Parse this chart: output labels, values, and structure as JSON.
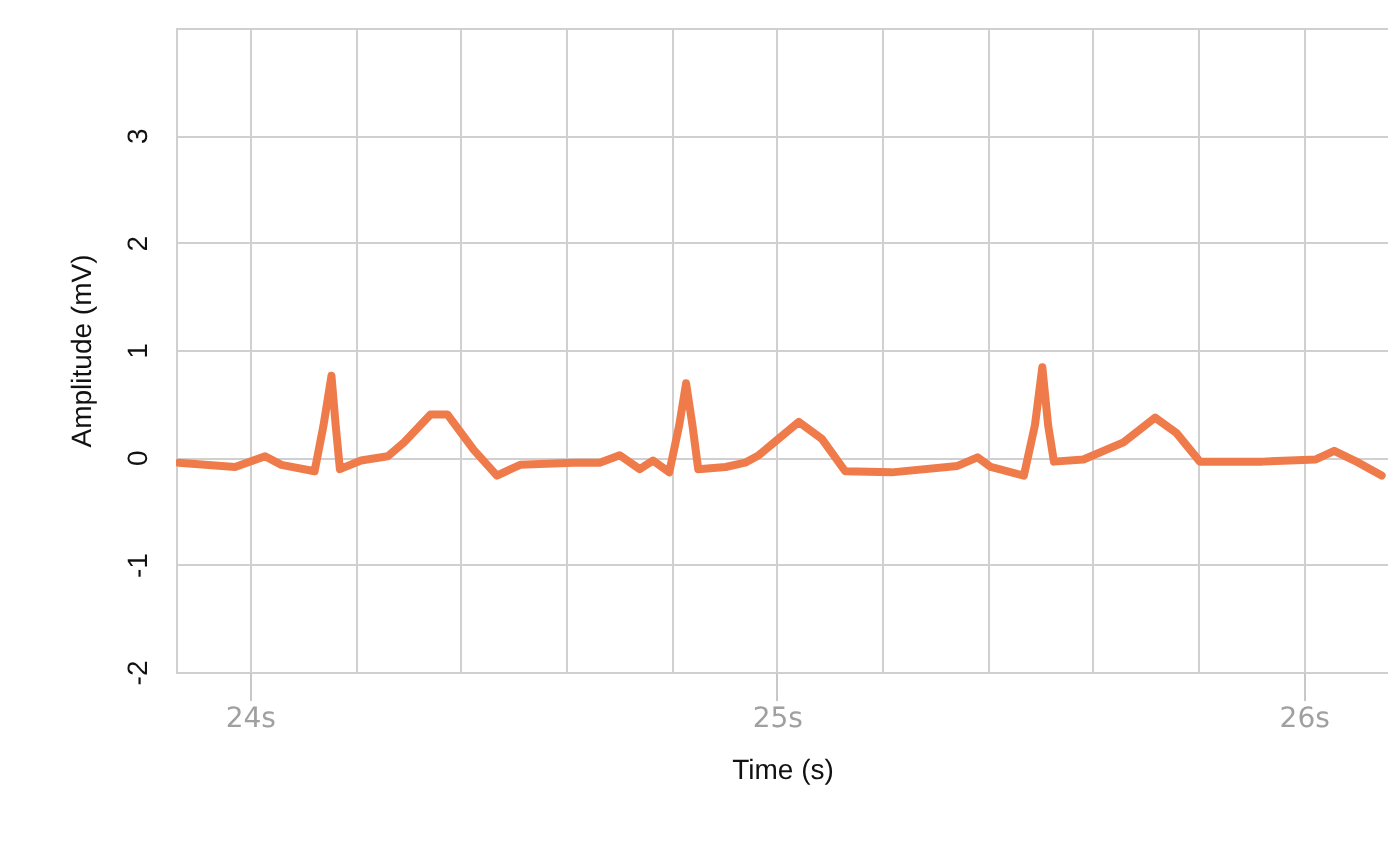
{
  "chart_data": {
    "type": "line",
    "xlabel": "Time (s)",
    "ylabel": "Amplitude (mV)",
    "x": [
      23.865,
      23.972,
      24.029,
      24.06,
      24.123,
      24.14,
      24.155,
      24.163,
      24.171,
      24.211,
      24.262,
      24.293,
      24.343,
      24.375,
      24.425,
      24.469,
      24.513,
      24.614,
      24.664,
      24.702,
      24.74,
      24.765,
      24.796,
      24.815,
      24.828,
      24.84,
      24.851,
      24.903,
      24.94,
      24.966,
      25.042,
      25.086,
      25.13,
      25.218,
      25.343,
      25.381,
      25.406,
      25.469,
      25.49,
      25.504,
      25.515,
      25.526,
      25.582,
      25.658,
      25.718,
      25.758,
      25.803,
      25.922,
      26.023,
      26.058,
      26.104,
      26.148
    ],
    "series": [
      {
        "color": "#ef7b4b",
        "values": [
          -0.05,
          -0.09,
          0.01,
          -0.07,
          -0.13,
          0.3,
          0.76,
          0.3,
          -0.11,
          -0.03,
          0.01,
          0.14,
          0.4,
          0.4,
          0.07,
          -0.17,
          -0.07,
          -0.05,
          -0.05,
          0.02,
          -0.11,
          -0.03,
          -0.14,
          0.3,
          0.69,
          0.3,
          -0.11,
          -0.09,
          -0.05,
          0.02,
          0.33,
          0.17,
          -0.13,
          -0.14,
          -0.08,
          0.0,
          -0.09,
          -0.17,
          0.3,
          0.84,
          0.3,
          -0.04,
          -0.02,
          0.14,
          0.37,
          0.23,
          -0.04,
          -0.04,
          -0.02,
          0.06,
          -0.05,
          -0.17
        ]
      }
    ],
    "xlim": [
      23.86,
      26.16
    ],
    "ylim": [
      -2,
      4
    ],
    "xticks": [
      {
        "value": 24,
        "label": "24s"
      },
      {
        "value": 24.2,
        "label": null
      },
      {
        "value": 24.4,
        "label": null
      },
      {
        "value": 24.6,
        "label": null
      },
      {
        "value": 24.8,
        "label": null
      },
      {
        "value": 25,
        "label": "25s"
      },
      {
        "value": 25.2,
        "label": null
      },
      {
        "value": 25.4,
        "label": null
      },
      {
        "value": 25.6,
        "label": null
      },
      {
        "value": 25.8,
        "label": null
      },
      {
        "value": 26,
        "label": "26s"
      }
    ],
    "yticks": [
      -2,
      -1,
      0,
      1,
      2,
      3
    ],
    "grid": true,
    "marker": "none",
    "line_style": "solid"
  }
}
